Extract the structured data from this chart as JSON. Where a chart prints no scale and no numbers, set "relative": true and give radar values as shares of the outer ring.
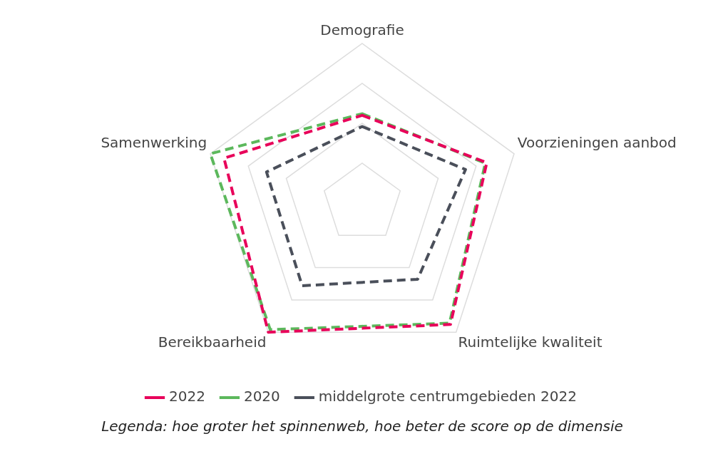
{
  "chart_data": {
    "type": "radar",
    "relative": true,
    "categories": [
      "Demografie",
      "Voorzieningen aanbod",
      "Ruimtelijke kwaliteit",
      "Bereikbaarheid",
      "Samenwerking"
    ],
    "series": [
      {
        "name": "2022",
        "color": "#e8005a",
        "values": [
          0.55,
          0.82,
          0.94,
          1.0,
          0.91
        ]
      },
      {
        "name": "2020",
        "color": "#5cb85c",
        "values": [
          0.56,
          0.81,
          0.93,
          0.98,
          1.0
        ]
      },
      {
        "name": "middelgrote centrumgebieden 2022",
        "color": "#4a4f5a",
        "values": [
          0.48,
          0.68,
          0.59,
          0.64,
          0.63
        ]
      }
    ],
    "line_style": "dashed",
    "legend": "bottom",
    "grid": true,
    "annotations": [
      "Legenda: hoe groter het spinnenweb, hoe beter de score op de dimensie"
    ]
  }
}
